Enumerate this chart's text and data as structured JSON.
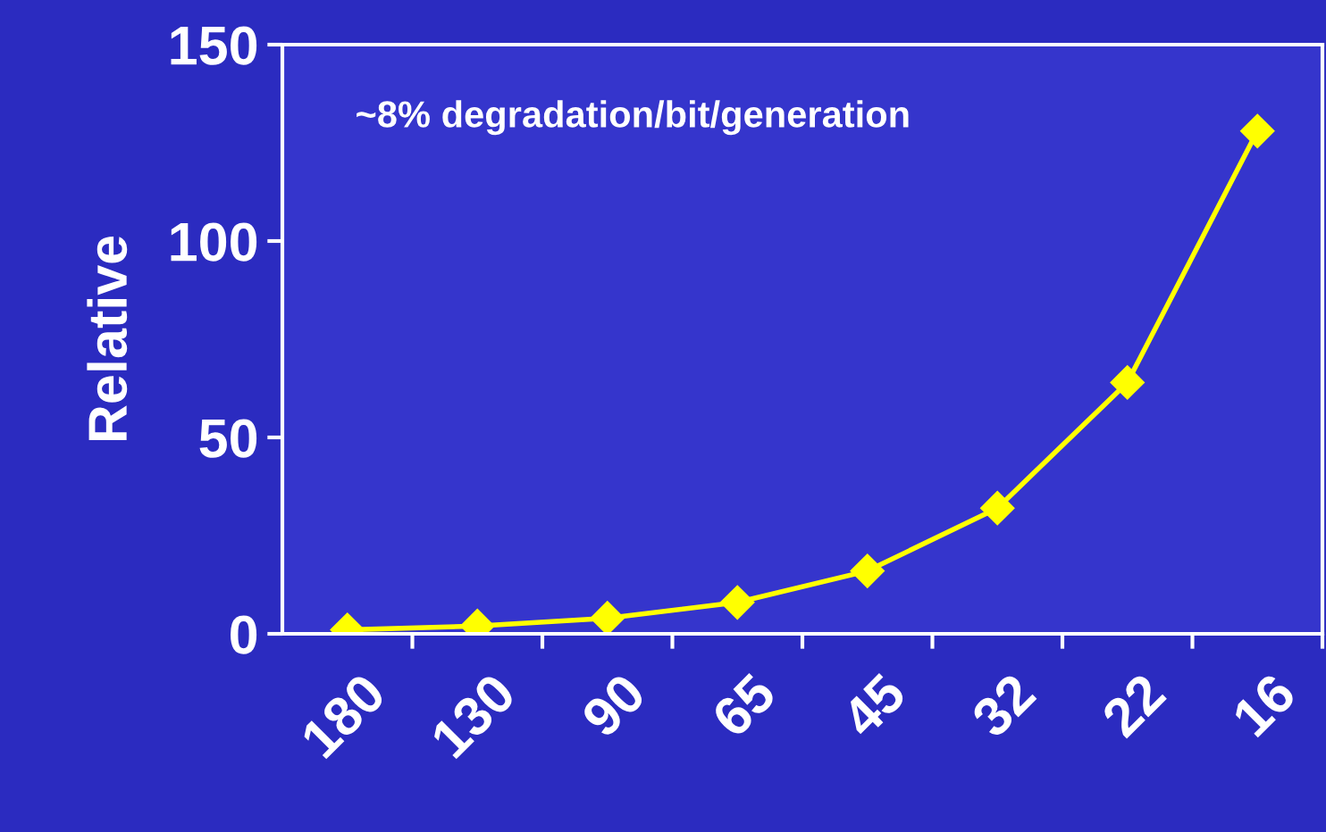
{
  "chart_data": {
    "type": "line",
    "ylabel": "Relative",
    "annotations": [
      "~8% degradation/bit/generation"
    ],
    "categories": [
      "180",
      "130",
      "90",
      "65",
      "45",
      "32",
      "22",
      "16"
    ],
    "series": [
      {
        "color": "#ffff00",
        "values": [
          1,
          2,
          4,
          8,
          16,
          32,
          64,
          128
        ]
      }
    ],
    "ylim": [
      0,
      150
    ],
    "yticks": [
      0,
      50,
      100,
      150
    ],
    "grid": false,
    "legend": false,
    "marker": "diamond",
    "line_style": "solid"
  }
}
